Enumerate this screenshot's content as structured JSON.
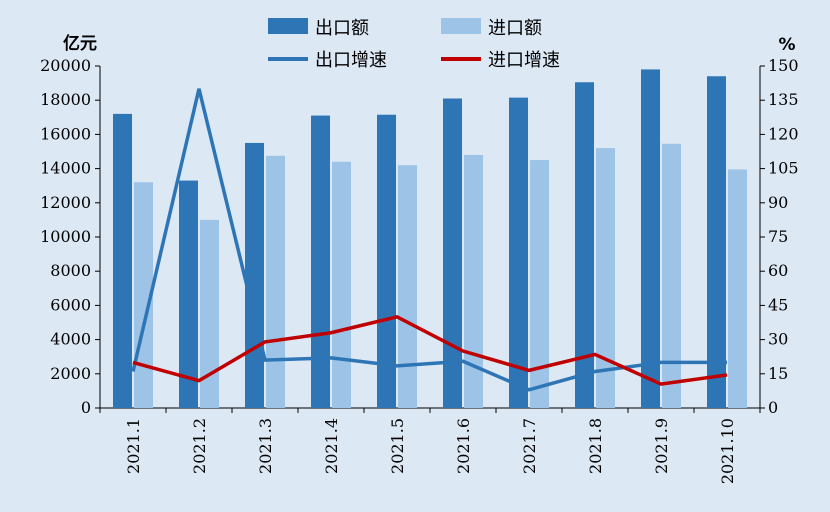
{
  "chart_data": {
    "type": "bar",
    "categories": [
      "2021.1",
      "2021.2",
      "2021.3",
      "2021.4",
      "2021.5",
      "2021.6",
      "2021.7",
      "2021.8",
      "2021.9",
      "2021.10"
    ],
    "series": [
      {
        "name": "出口额",
        "type": "bar",
        "axis": "left",
        "color": "#2e75b6",
        "values": [
          17200,
          13300,
          15500,
          17100,
          17150,
          18100,
          18150,
          19050,
          19800,
          19400
        ]
      },
      {
        "name": "进口额",
        "type": "bar",
        "axis": "left",
        "color": "#9dc3e6",
        "values": [
          13200,
          11000,
          14750,
          14400,
          14200,
          14800,
          14500,
          15200,
          15450,
          13950
        ]
      },
      {
        "name": "出口增速",
        "type": "line",
        "axis": "right",
        "color": "#2e75b6",
        "values": [
          16,
          140,
          21,
          22,
          18.5,
          20.5,
          8,
          16,
          20,
          20
        ]
      },
      {
        "name": "进口增速",
        "type": "line",
        "axis": "right",
        "color": "#c00000",
        "values": [
          20,
          12,
          29,
          33,
          40,
          25,
          16.5,
          23.5,
          10.5,
          14.5
        ]
      }
    ],
    "left_axis": {
      "unit": "亿元",
      "min": 0,
      "max": 20000,
      "step": 2000
    },
    "right_axis": {
      "unit": "%",
      "min": 0,
      "max": 150,
      "step": 15
    },
    "legend_position": "top"
  }
}
